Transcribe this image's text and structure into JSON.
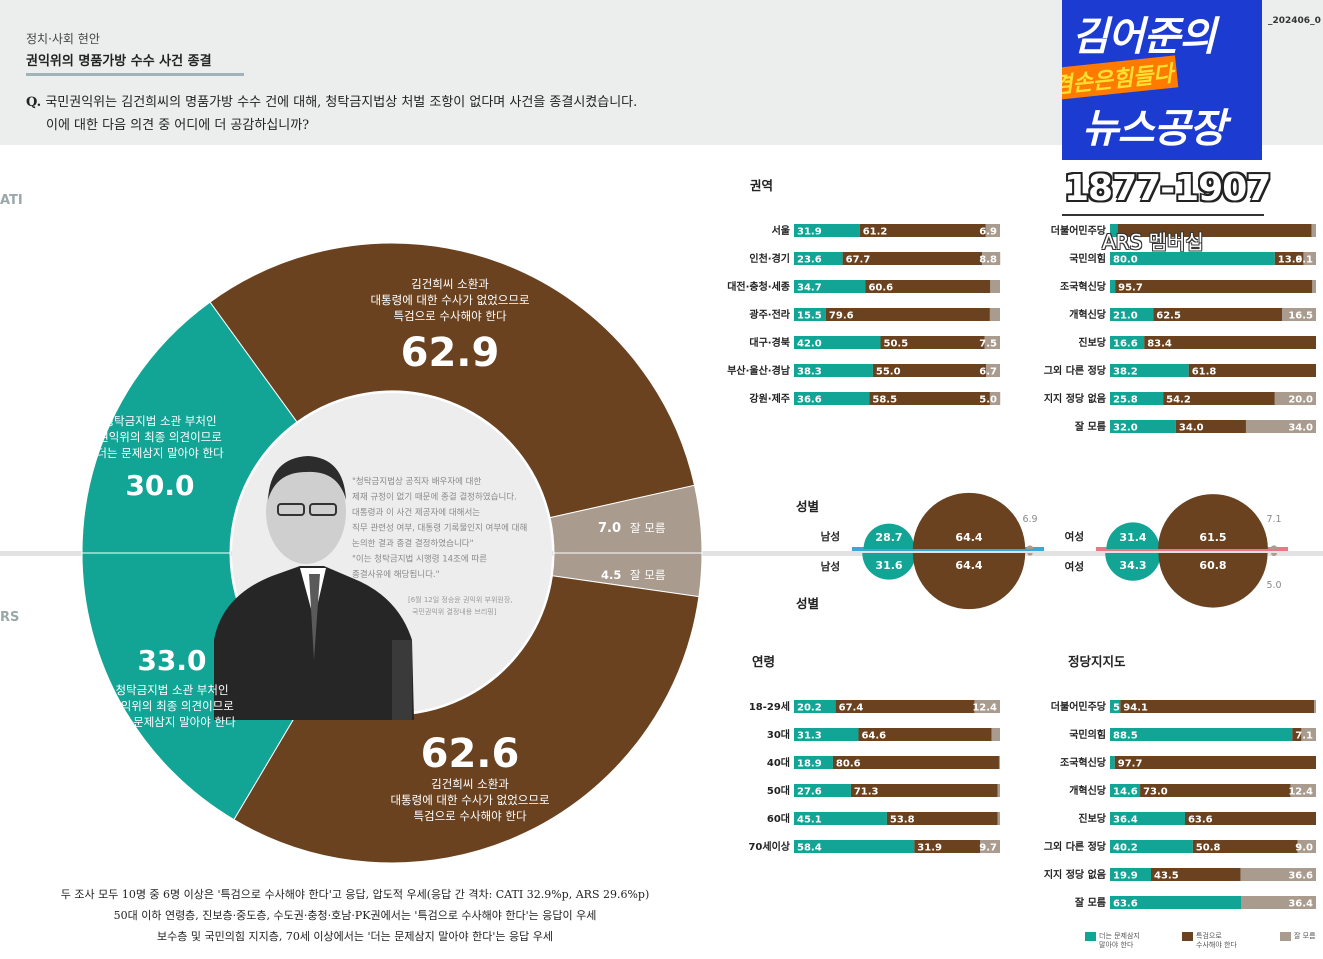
{
  "header": {
    "category": "정치·사회 현안",
    "title": "권익위의 명품가방 수수 사건 종결",
    "question_mark": "Q.",
    "question_line1": "국민권익위는 김건희씨의 명품가방 수수 건에 대해, 청탁금지법상 처벌 조항이 없다며 사건을 종결시켰습니다.",
    "question_line2": "이에 대한 다음 의견 중 어디에 더 공감하십니까?",
    "code": "_202406_0"
  },
  "side_labels": {
    "top": "ATI",
    "bottom": "RS"
  },
  "overlay": {
    "title_line1": "김어준의",
    "title_line2": "겸손은힘들다",
    "title_line3": "뉴스공장",
    "phone": "1877-1907",
    "membership": "ARS 멤버십"
  },
  "colors": {
    "teal": "#12a596",
    "brown": "#6a4220",
    "gray": "#a99b8e"
  },
  "quote": {
    "lines": [
      "\"청탁금지법상 공직자 배우자에 대한",
      "제재 규정이 없기 때문에 종결 결정하였습니다.",
      "대통령과 이 사건 제공자에 대해서는",
      "직무 관련성 여부, 대통령 기록물인지 여부에 대해",
      "논의한 결과 종결 결정하였습니다\"",
      "\"이는 청탁금지법 시행령 14조에 따른",
      "종결사유에 해당됩니다.\""
    ],
    "source_line1": "[6월 12일 정승윤 권익위 부위원장,",
    "source_line2": "국민권익위 결정내용 브리핑]"
  },
  "chart_data": [
    {
      "type": "pie",
      "name": "CATI",
      "values": [
        {
          "value": 62.9,
          "value_label": "62.9",
          "label": [
            "김건희씨 소환과",
            "대통령에 대한 수사가 없었으므로",
            "특검으로 수사해야 한다"
          ]
        },
        {
          "value": 7.0,
          "value_label": "7.0",
          "label": [
            "잘 모름"
          ]
        },
        {
          "value": 30.0,
          "value_label": "30.0",
          "label": [
            "청탁금지법 소관 부처인",
            "권익위의 최종 의견이므로",
            "더는 문제삼지 말아야 한다"
          ]
        }
      ]
    },
    {
      "type": "pie",
      "name": "ARS",
      "values": [
        {
          "value": 62.6,
          "value_label": "62.6",
          "label": [
            "김건희씨 소환과",
            "대통령에 대한 수사가 없었으므로",
            "특검으로 수사해야 한다"
          ]
        },
        {
          "value": 4.5,
          "value_label": "4.5",
          "label": [
            "잘 모름"
          ]
        },
        {
          "value": 33.0,
          "value_label": "33.0",
          "label": [
            "청탁금지법 소관 부처인",
            "권익위의 최종 의견이므로",
            "더는 문제삼지 말아야 한다"
          ]
        }
      ]
    },
    {
      "type": "bar",
      "title": "권역",
      "categories": [
        "서울",
        "인천·경기",
        "대전·충청·세종",
        "광주·전라",
        "대구·경북",
        "부산·울산·경남",
        "강원·제주"
      ],
      "series": [
        {
          "values": [
            31.9,
            23.6,
            34.7,
            15.5,
            42.0,
            38.3,
            36.6
          ],
          "labels": [
            "31.9",
            "23.6",
            "34.7",
            "15.5",
            "42.0",
            "38.3",
            "36.6"
          ]
        },
        {
          "values": [
            61.2,
            67.7,
            60.6,
            79.6,
            50.5,
            55.0,
            58.5
          ],
          "labels": [
            "61.2",
            "67.7",
            "60.6",
            "79.6",
            "50.5",
            "55.0",
            "58.5"
          ]
        },
        {
          "values": [
            6.9,
            8.8,
            4.7,
            4.9,
            7.5,
            6.7,
            5.0
          ],
          "labels": [
            "6.9",
            "8.8",
            "",
            "",
            "7.5",
            "6.7",
            "5.0"
          ]
        }
      ]
    },
    {
      "type": "bar",
      "title": "",
      "categories": [
        "더불어민주당",
        "국민의힘",
        "조국혁신당",
        "개혁신당",
        "진보당",
        "그외 다른 정당",
        "지지 정당 없음",
        "잘 모름"
      ],
      "series": [
        {
          "values": [
            3.7,
            80.0,
            2.5,
            21.0,
            16.6,
            38.2,
            25.8,
            32.0
          ],
          "labels": [
            "",
            "80.0",
            "",
            "21.0",
            "16.6",
            "38.2",
            "25.8",
            "32.0"
          ]
        },
        {
          "values": [
            94.1,
            13.9,
            95.7,
            62.5,
            83.4,
            61.8,
            54.2,
            34.0
          ],
          "labels": [
            "",
            "13.9",
            "95.7",
            "62.5",
            "83.4",
            "61.8",
            "54.2",
            "34.0"
          ]
        },
        {
          "values": [
            2.2,
            6.1,
            1.8,
            16.5,
            0,
            0,
            20.0,
            34.0
          ],
          "labels": [
            "",
            "6.1",
            "",
            "16.5",
            "",
            "",
            "20.0",
            "34.0"
          ]
        }
      ]
    },
    {
      "type": "bar",
      "title": "연령",
      "categories": [
        "18-29세",
        "30대",
        "40대",
        "50대",
        "60대",
        "70세이상"
      ],
      "series": [
        {
          "values": [
            20.2,
            31.3,
            18.9,
            27.6,
            45.1,
            58.4
          ],
          "labels": [
            "20.2",
            "31.3",
            "18.9",
            "27.6",
            "45.1",
            "58.4"
          ]
        },
        {
          "values": [
            67.4,
            64.6,
            80.6,
            71.3,
            53.8,
            31.9
          ],
          "labels": [
            "67.4",
            "64.6",
            "80.6",
            "71.3",
            "53.8",
            "31.9"
          ]
        },
        {
          "values": [
            12.4,
            4.1,
            0.5,
            1.1,
            1.1,
            9.7
          ],
          "labels": [
            "12.4",
            "",
            "",
            "",
            "",
            "9.7"
          ]
        }
      ]
    },
    {
      "type": "bar",
      "title": "정당지지도",
      "categories": [
        "더불어민주당",
        "국민의힘",
        "조국혁신당",
        "개혁신당",
        "진보당",
        "그외 다른 정당",
        "지지 정당 없음",
        "잘 모름"
      ],
      "series": [
        {
          "values": [
            5.0,
            88.5,
            2.3,
            14.6,
            36.4,
            40.2,
            19.9,
            63.6
          ],
          "labels": [
            "5.0",
            "88.5",
            "",
            "14.6",
            "36.4",
            "40.2",
            "19.9",
            "63.6"
          ]
        },
        {
          "values": [
            94.1,
            4.4,
            97.7,
            73.0,
            63.6,
            50.8,
            43.5,
            0
          ],
          "labels": [
            "94.1",
            "",
            "97.7",
            "73.0",
            "63.6",
            "50.8",
            "43.5",
            ""
          ]
        },
        {
          "values": [
            0.9,
            7.1,
            0,
            12.4,
            0,
            9.0,
            36.6,
            36.4
          ],
          "labels": [
            "",
            "7.1",
            "",
            "12.4",
            "",
            "9.0",
            "36.6",
            "36.4"
          ]
        }
      ]
    },
    {
      "type": "bubble",
      "title": "성별",
      "title_bottom": "성별",
      "groups": [
        {
          "category": "남성",
          "values": [
            28.7,
            64.4,
            6.9
          ]
        },
        {
          "category": "남성",
          "values": [
            31.6,
            64.4,
            4.0
          ]
        },
        {
          "category": "여성",
          "values": [
            31.4,
            61.5,
            7.1
          ]
        },
        {
          "category": "여성",
          "values": [
            34.3,
            60.8,
            5.0
          ]
        }
      ],
      "labels": [
        [
          "28.7",
          "64.4",
          "6.9"
        ],
        [
          "31.6",
          "64.4",
          ""
        ],
        [
          "31.4",
          "61.5",
          "7.1"
        ],
        [
          "34.3",
          "60.8",
          "5.0"
        ]
      ]
    }
  ],
  "legend": [
    {
      "label": [
        "더는 문제삼지",
        "말아야 한다"
      ],
      "color": "#12a596"
    },
    {
      "label": [
        "특검으로",
        "수사해야 한다"
      ],
      "color": "#6a4220"
    },
    {
      "label": [
        "잘 모름"
      ],
      "color": "#a99b8e"
    }
  ],
  "footer": {
    "line1": "두 조사 모두 10명 중 6명 이상은 '특검으로 수사해야 한다'고 응답, 압도적 우세(응답 간 격차: CATI 32.9%p, ARS 29.6%p)",
    "line2": "50대 이하 연령층, 진보층·중도층, 수도권·충청·호남·PK권에서는 '특검으로 수사해야 한다'는 응답이 우세",
    "line3": "보수층 및 국민의힘 지지층, 70세 이상에서는 '더는 문제삼지 말아야 한다'는 응답 우세"
  }
}
